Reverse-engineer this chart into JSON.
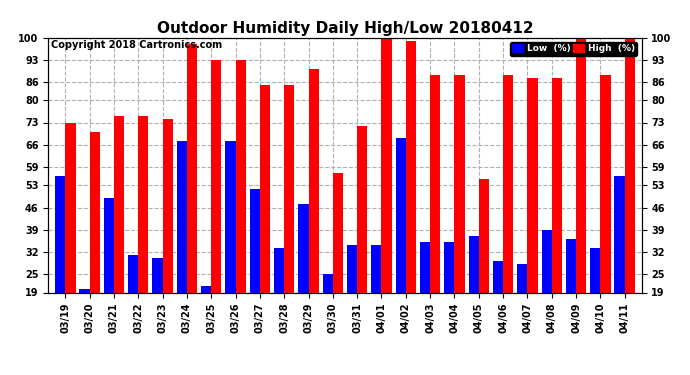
{
  "title": "Outdoor Humidity Daily High/Low 20180412",
  "copyright": "Copyright 2018 Cartronics.com",
  "dates": [
    "03/19",
    "03/20",
    "03/21",
    "03/22",
    "03/23",
    "03/24",
    "03/25",
    "03/26",
    "03/27",
    "03/28",
    "03/29",
    "03/30",
    "03/31",
    "04/01",
    "04/02",
    "04/03",
    "04/04",
    "04/05",
    "04/06",
    "04/07",
    "04/08",
    "04/09",
    "04/10",
    "04/11"
  ],
  "high": [
    73,
    70,
    75,
    75,
    74,
    98,
    93,
    93,
    85,
    85,
    90,
    57,
    72,
    100,
    99,
    88,
    88,
    55,
    88,
    87,
    87,
    100,
    88,
    100
  ],
  "low": [
    56,
    20,
    49,
    31,
    30,
    67,
    21,
    67,
    52,
    33,
    47,
    25,
    34,
    34,
    68,
    35,
    35,
    37,
    29,
    28,
    39,
    36,
    33,
    56
  ],
  "ymin": 19,
  "ymax": 100,
  "yticks": [
    19,
    25,
    32,
    39,
    46,
    53,
    59,
    66,
    73,
    80,
    86,
    93,
    100
  ],
  "bar_width": 0.42,
  "high_color": "#ff0000",
  "low_color": "#0000ff",
  "bg_color": "#ffffff",
  "grid_color": "#b0b0b0",
  "title_fontsize": 11,
  "copyright_fontsize": 7,
  "tick_fontsize": 7,
  "legend_high_label": "High  (%)",
  "legend_low_label": "Low  (%)"
}
